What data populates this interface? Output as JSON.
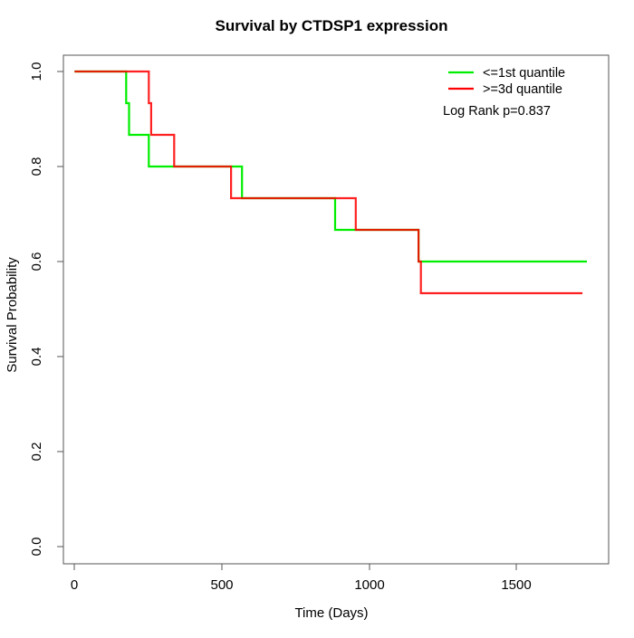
{
  "chart_data": {
    "type": "line",
    "subtype": "kaplan-meier-step",
    "title": "Survival by CTDSP1 expression",
    "xlabel": "Time (Days)",
    "ylabel": "Survival Probability",
    "xlim": [
      0,
      1740
    ],
    "ylim": [
      0,
      1
    ],
    "x_ticks": [
      0,
      500,
      1000,
      1500
    ],
    "x_tick_labels": [
      "0",
      "500",
      "1000",
      "1500"
    ],
    "y_ticks": [
      0.0,
      0.2,
      0.4,
      0.6,
      0.8,
      1.0
    ],
    "y_tick_labels": [
      "0.0",
      "0.2",
      "0.4",
      "0.6",
      "0.8",
      "1.0"
    ],
    "grid": false,
    "legend_position": "top-right",
    "annotation": "Log Rank p=0.837",
    "series": [
      {
        "name": "<=1st quantile",
        "color": "#00ee00",
        "points": [
          [
            0,
            1.0
          ],
          [
            175,
            0.9333
          ],
          [
            185,
            0.8667
          ],
          [
            252,
            0.8
          ],
          [
            568,
            0.7333
          ],
          [
            884,
            0.6667
          ],
          [
            1167,
            0.6
          ],
          [
            1738,
            0.6
          ]
        ]
      },
      {
        "name": ">=3d quantile",
        "color": "#ff0000",
        "points": [
          [
            0,
            1.0
          ],
          [
            252,
            0.9333
          ],
          [
            260,
            0.8667
          ],
          [
            338,
            0.8
          ],
          [
            531,
            0.7333
          ],
          [
            954,
            0.6667
          ],
          [
            1167,
            0.6
          ],
          [
            1175,
            0.5333
          ],
          [
            1723,
            0.5333
          ]
        ]
      }
    ]
  }
}
